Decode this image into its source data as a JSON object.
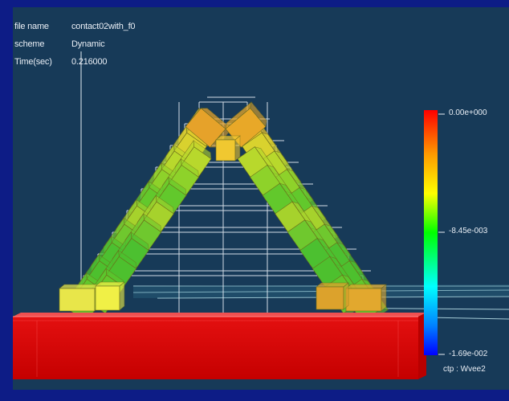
{
  "info": {
    "file_name_label": "file name",
    "file_name_value": "contact02with_f0",
    "scheme_label": "scheme",
    "scheme_value": "Dynamic",
    "time_label": "Time(sec)",
    "time_value": "0.216000"
  },
  "colorbar": {
    "max_label": "0.00e+000",
    "mid_label": "-8.45e-003",
    "min_label": "-1.69e-002",
    "quantity_label": "ctp : Wvee2"
  }
}
